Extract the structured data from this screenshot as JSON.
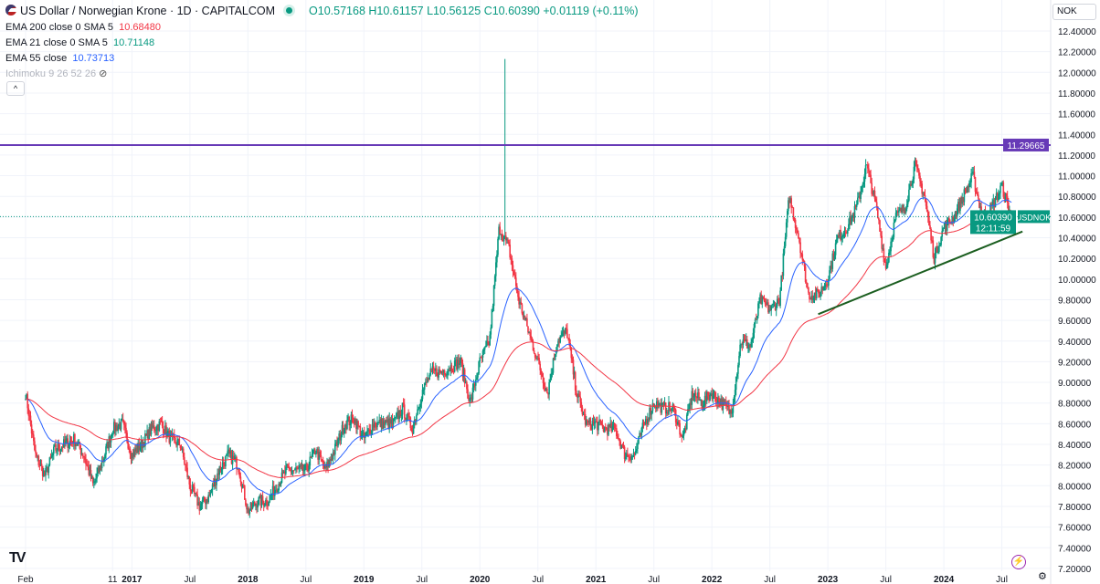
{
  "header": {
    "title": "US Dollar / Norwegian Krone · 1D · CAPITALCOM",
    "open": "O10.57168",
    "high": "H10.61157",
    "low": "L10.56125",
    "close": "C10.60390",
    "change": "+0.01119 (+0.11%)"
  },
  "indicators": [
    {
      "label": "EMA 200 close 0 SMA 5",
      "value": "10.68480",
      "color": "#f23645"
    },
    {
      "label": "EMA 21 close 0 SMA 5",
      "value": "10.71148",
      "color": "#089981"
    },
    {
      "label": "EMA 55 close",
      "value": "10.73713",
      "color": "#2962ff"
    },
    {
      "label": "Ichimoku 9 26 52 26",
      "value": "",
      "color": "#b2b5be"
    }
  ],
  "currency": "NOK",
  "symbol_label": "USDNOK",
  "price_label": "10.60390",
  "countdown": "12:11:59",
  "hline_label": "11.29665",
  "chart_data": {
    "type": "candlestick",
    "ylim": [
      7.2,
      12.4
    ],
    "yticks": [
      "12.40000",
      "12.20000",
      "12.00000",
      "11.80000",
      "11.60000",
      "11.40000",
      "11.20000",
      "11.00000",
      "10.80000",
      "10.60000",
      "10.40000",
      "10.20000",
      "10.00000",
      "9.80000",
      "9.60000",
      "9.40000",
      "9.20000",
      "9.00000",
      "8.80000",
      "8.60000",
      "8.40000",
      "8.20000",
      "8.00000",
      "7.80000",
      "7.60000",
      "7.40000",
      "7.20000"
    ],
    "xticks": [
      "Feb",
      "11",
      "2017",
      "Jul",
      "2018",
      "Jul",
      "2019",
      "Jul",
      "2020",
      "Jul",
      "2021",
      "Jul",
      "2022",
      "Jul",
      "2023",
      "Jul",
      "2024",
      "Jul"
    ],
    "xtick_dates": [
      "2016-02",
      "2016-11",
      "2017-01",
      "2017-07",
      "2018-01",
      "2018-07",
      "2019-01",
      "2019-07",
      "2020-01",
      "2020-07",
      "2021-01",
      "2021-07",
      "2022-01",
      "2022-07",
      "2023-01",
      "2023-07",
      "2024-01",
      "2024-07"
    ],
    "start": "2016-02",
    "monthly_close_approx": [
      8.9,
      8.3,
      8.1,
      8.35,
      8.4,
      8.45,
      8.3,
      8.0,
      8.25,
      8.55,
      8.6,
      8.3,
      8.4,
      8.55,
      8.6,
      8.45,
      8.4,
      8.0,
      7.8,
      7.9,
      8.15,
      8.3,
      8.2,
      7.75,
      7.85,
      7.85,
      8.0,
      8.15,
      8.15,
      8.15,
      8.35,
      8.15,
      8.35,
      8.6,
      8.65,
      8.45,
      8.6,
      8.6,
      8.6,
      8.75,
      8.55,
      8.9,
      9.1,
      9.1,
      9.15,
      9.2,
      8.8,
      9.2,
      9.4,
      10.5,
      10.3,
      9.8,
      9.5,
      9.2,
      8.9,
      9.4,
      9.5,
      8.9,
      8.6,
      8.6,
      8.55,
      8.55,
      8.3,
      8.3,
      8.6,
      8.8,
      8.75,
      8.75,
      8.45,
      8.9,
      8.8,
      8.9,
      8.8,
      8.7,
      9.4,
      9.35,
      9.8,
      9.7,
      9.8,
      10.8,
      10.4,
      9.85,
      9.85,
      10.0,
      10.4,
      10.5,
      10.7,
      11.1,
      10.7,
      10.1,
      10.6,
      10.7,
      11.1,
      10.8,
      10.2,
      10.5,
      10.6,
      10.8,
      11.0,
      10.6,
      10.7,
      10.9,
      10.6
    ],
    "spike_high": {
      "date": "2020-03",
      "value": 12.13
    },
    "horizontal_line": 11.29665,
    "last_price": 10.6039,
    "trendline": [
      {
        "date": "2022-12",
        "value": 9.66
      },
      {
        "date": "2024-08",
        "value": 10.46
      }
    ],
    "colors": {
      "up": "#089981",
      "down": "#f23645",
      "hline": "#673ab7",
      "trend": "#1b5e20",
      "ema200": "#f23645",
      "ema55": "#2962ff"
    },
    "grid": true
  }
}
